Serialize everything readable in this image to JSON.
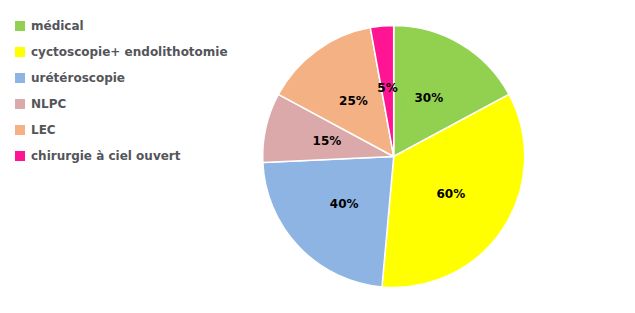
{
  "chart_data": {
    "type": "pie",
    "categories": [
      "médical",
      "cyctoscopie+ endolithotomie",
      "urétéroscopie",
      "NLPC",
      "LEC",
      "chirurgie à ciel ouvert"
    ],
    "values": [
      30,
      60,
      40,
      15,
      25,
      5
    ],
    "value_labels": [
      "30%",
      "60%",
      "40%",
      "15%",
      "25%",
      "5%"
    ],
    "colors": [
      "#92D050",
      "#FFFF00",
      "#8DB4E2",
      "#DBA9A9",
      "#F4B183",
      "#FF1493"
    ],
    "data_labels": true,
    "legend": "upper left"
  }
}
